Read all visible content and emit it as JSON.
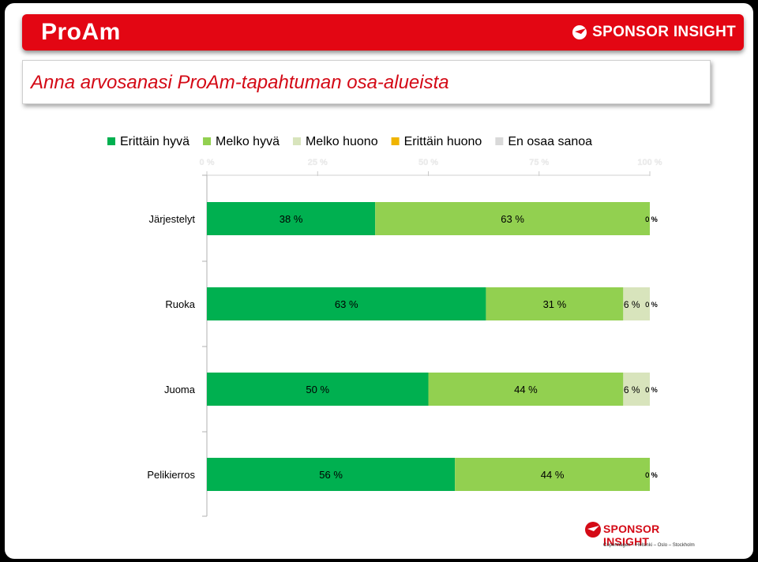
{
  "header": {
    "title": "ProAm",
    "brand": "SPONSOR INSIGHT",
    "accent_color": "#e30613"
  },
  "subtitle": "Anna arvosanasi ProAm-tapahtuman osa-alueista",
  "footer": {
    "brand": "SPONSOR INSIGHT",
    "cities": "Copenhagen – Helsinki – Oslo – Stockholm"
  },
  "chart_data": {
    "type": "bar",
    "orientation": "horizontal",
    "stacked": true,
    "categories": [
      "Järjestelyt",
      "Ruoka",
      "Juoma",
      "Pelikierros"
    ],
    "series": [
      {
        "name": "Erittäin hyvä",
        "color": "#00b050",
        "values": [
          38,
          63,
          50,
          56
        ],
        "labels": [
          "38 %",
          "63 %",
          "50 %",
          "56 %"
        ]
      },
      {
        "name": "Melko hyvä",
        "color": "#92d050",
        "values": [
          63,
          31,
          44,
          44
        ],
        "labels": [
          "63 %",
          "31 %",
          "44 %",
          "44 %"
        ]
      },
      {
        "name": "Melko huono",
        "color": "#d8e4bc",
        "values": [
          0,
          6,
          6,
          0
        ],
        "labels": [
          "0 %",
          "6 %",
          "6 %",
          "0 %"
        ]
      },
      {
        "name": "Erittäin huono",
        "color": "#f0b400",
        "values": [
          0,
          0,
          0,
          0
        ],
        "labels": [
          "0 %",
          "0 %",
          "0 %",
          "0 %"
        ]
      },
      {
        "name": "En osaa sanoa",
        "color": "#d9d9d9",
        "values": [
          0,
          0,
          0,
          0
        ],
        "labels": [
          "0 %",
          "0 %",
          "0 %",
          "0 %"
        ]
      }
    ],
    "xlim": [
      0,
      100
    ],
    "xticks": [
      "0 %",
      "25 %",
      "50 %",
      "75 %",
      "100 %"
    ],
    "legend_position": "top",
    "grid": false
  }
}
